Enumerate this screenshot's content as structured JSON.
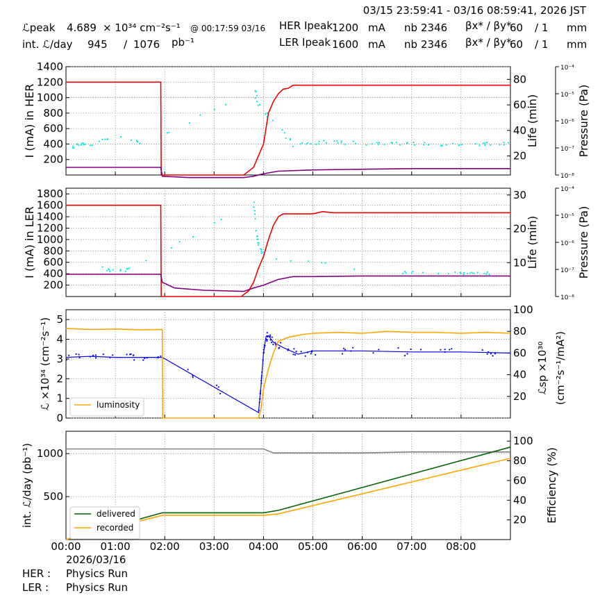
{
  "header": {
    "time_range": "03/15 23:59:41 - 03/16 08:59:41, 2026 JST",
    "lpeak_label": "ℒpeak",
    "lpeak_value": "4.689",
    "lpeak_unit": "× 10³⁴ cm⁻²s⁻¹",
    "lpeak_time": "@ 00:17:59 03/16",
    "intl_label": "int. ℒ/day",
    "intl_recorded": "945",
    "intl_sep": "/",
    "intl_delivered": "1076",
    "intl_unit": "pb⁻¹",
    "her_label": "HER Ipeak",
    "her_value": "1200",
    "her_unit": "mA",
    "her_nb_label": "nb",
    "her_nb": "2346",
    "her_beta_label": "βx* / βy*",
    "her_beta_x": "60",
    "her_beta_sep": "/ 1",
    "her_beta_unit": "mm",
    "ler_label": "LER Ipeak",
    "ler_value": "1600",
    "ler_unit": "mA",
    "ler_nb_label": "nb",
    "ler_nb": "2346",
    "ler_beta_label": "βx* / βy*",
    "ler_beta_x": "60",
    "ler_beta_sep": "/ 1",
    "ler_beta_unit": "mm"
  },
  "footer": {
    "date": "2026/03/16",
    "her_mode_label": "HER :",
    "her_mode": "Physics Run",
    "ler_mode_label": "LER :",
    "ler_mode": "Physics Run"
  },
  "colors": {
    "current": "#ee0000",
    "life": "#800080",
    "pressure": "#00e5e5",
    "luminosity": "#ffa500",
    "specific": "#0000ee",
    "delivered": "#006400",
    "recorded": "#ffa500",
    "efficiency": "#808080"
  },
  "chart_data": [
    {
      "type": "line",
      "panel": "HER",
      "x_ticks": [
        "00:00",
        "01:00",
        "02:00",
        "03:00",
        "04:00",
        "05:00",
        "06:00",
        "07:00",
        "08:00"
      ],
      "xlim_hours": [
        0,
        9
      ],
      "ylabel": "I (mA) in HER",
      "ylim": [
        0,
        1400
      ],
      "y_ticks": [
        200,
        400,
        600,
        800,
        1000,
        1200,
        1400
      ],
      "y2label": "Life (min)",
      "y2_ticks": [
        20,
        40,
        60,
        80
      ],
      "y3label": "Pressure (Pa)",
      "y3_ticks": [
        "10⁻⁸",
        "10⁻⁷",
        "10⁻⁶",
        "10⁻⁵",
        "10⁻⁴"
      ],
      "grid": true,
      "series": [
        {
          "role": "current",
          "x": [
            0,
            1.92,
            1.93,
            3.6,
            3.8,
            3.9,
            4.0,
            4.1,
            4.2,
            4.3,
            4.4,
            4.5,
            4.6,
            4.7,
            9
          ],
          "y": [
            1200,
            1200,
            0,
            0,
            100,
            250,
            400,
            800,
            950,
            1050,
            1110,
            1120,
            1160,
            1160,
            1160
          ]
        },
        {
          "role": "life",
          "x": [
            0,
            1.92,
            1.95,
            2.5,
            3.6,
            3.8,
            4.0,
            4.3,
            5.0,
            6.0,
            7.0,
            8.0,
            9
          ],
          "y": [
            90,
            90,
            20,
            10,
            10,
            20,
            40,
            60,
            70,
            75,
            80,
            80,
            80
          ]
        },
        {
          "role": "pressure_scatter",
          "x": [
            0.1,
            0.3,
            0.5,
            0.9,
            1.6,
            3.8,
            3.9,
            4.2,
            4.6,
            5.1,
            5.5,
            6.0,
            6.5,
            7.0,
            7.5,
            8.0,
            8.5,
            9
          ],
          "y": [
            350,
            400,
            380,
            500,
            400,
            1100,
            950,
            700,
            400,
            420,
            420,
            410,
            400,
            410,
            400,
            400,
            400,
            400
          ]
        }
      ]
    },
    {
      "type": "line",
      "panel": "LER",
      "ylabel": "I (mA) in LER",
      "ylim": [
        0,
        1900
      ],
      "y_ticks": [
        200,
        400,
        600,
        800,
        1000,
        1200,
        1400,
        1600,
        1800
      ],
      "y2label": "Life (min)",
      "y2_ticks": [
        10,
        20,
        30
      ],
      "y3label": "Pressure (Pa)",
      "y3_ticks": [
        "10⁻⁸",
        "10⁻⁷",
        "10⁻⁶",
        "10⁻⁵",
        "10⁻⁴"
      ],
      "grid": true,
      "series": [
        {
          "role": "current",
          "x": [
            0,
            1.92,
            1.93,
            3.55,
            3.7,
            3.8,
            3.9,
            4.0,
            4.1,
            4.2,
            4.3,
            4.4,
            4.6,
            5.0,
            5.2,
            5.4,
            6.0,
            9
          ],
          "y": [
            1600,
            1600,
            0,
            0,
            100,
            250,
            500,
            700,
            1000,
            1250,
            1400,
            1450,
            1450,
            1450,
            1490,
            1470,
            1470,
            1470
          ]
        },
        {
          "role": "life",
          "x": [
            0,
            1.92,
            1.95,
            2.2,
            2.8,
            3.6,
            3.8,
            4.0,
            4.3,
            4.6,
            5.0,
            6.0,
            7.0,
            8.0,
            9
          ],
          "y": [
            390,
            390,
            250,
            150,
            110,
            90,
            150,
            200,
            300,
            350,
            350,
            360,
            360,
            360,
            360
          ]
        },
        {
          "role": "pressure_scatter",
          "x": [
            0.7,
            1.0,
            1.3,
            3.8,
            3.85,
            3.9,
            4.0,
            6.5,
            7.5,
            8.0,
            8.3,
            8.6
          ],
          "y": [
            500,
            450,
            470,
            1650,
            1200,
            900,
            700,
            420,
            420,
            400,
            420,
            400
          ]
        }
      ]
    },
    {
      "type": "line",
      "panel": "Luminosity",
      "ylabel": "ℒ ×10³⁴ (cm⁻²s⁻¹)",
      "ylim": [
        0,
        5.5
      ],
      "y_ticks": [
        0,
        1,
        2,
        3,
        4,
        5
      ],
      "y2label": "ℒsp ×10³⁰",
      "y2label2": "(cm⁻²s⁻¹/mA²)",
      "y2lim": [
        0,
        100
      ],
      "y2_ticks": [
        20,
        40,
        60,
        80,
        100
      ],
      "legend": [
        "luminosity"
      ],
      "legend_loc": "lower-left",
      "grid": true,
      "series": [
        {
          "role": "luminosity",
          "name": "luminosity",
          "x": [
            0,
            0.5,
            1.0,
            1.5,
            1.95,
            1.96,
            3.9,
            3.95,
            4.0,
            4.1,
            4.2,
            4.3,
            4.5,
            4.8,
            5.0,
            5.5,
            6.0,
            6.5,
            7.0,
            7.5,
            8.0,
            8.5,
            9
          ],
          "y": [
            4.55,
            4.5,
            4.52,
            4.48,
            4.5,
            0,
            0,
            0.5,
            1.5,
            2.5,
            3.3,
            3.9,
            4.1,
            4.25,
            4.3,
            4.35,
            4.3,
            4.4,
            4.35,
            4.35,
            4.3,
            4.35,
            4.3
          ]
        },
        {
          "role": "specific_luminosity",
          "x": [
            0,
            0.5,
            1.0,
            1.5,
            1.95,
            3.9,
            3.95,
            4.0,
            4.05,
            4.1,
            4.2,
            4.4,
            4.7,
            5.0,
            6.0,
            7.0,
            8.0,
            9
          ],
          "y": [
            56,
            57,
            56,
            56,
            56,
            5,
            30,
            60,
            75,
            76,
            70,
            65,
            59,
            62,
            62,
            61,
            61,
            60
          ]
        }
      ]
    },
    {
      "type": "line",
      "panel": "Integrated",
      "ylabel": "int. ℒ/day (pb⁻¹)",
      "ylim": [
        0,
        1260
      ],
      "y_ticks": [
        500,
        1000
      ],
      "y2label": "Efficiency (%)",
      "y2lim": [
        0,
        110
      ],
      "y2_ticks": [
        20,
        40,
        60,
        80,
        100
      ],
      "legend": [
        "delivered",
        "recorded"
      ],
      "legend_loc": "lower-left",
      "grid": true,
      "series": [
        {
          "role": "delivered",
          "name": "delivered",
          "x": [
            0,
            1.95,
            4.0,
            4.3,
            9
          ],
          "y": [
            0,
            312,
            312,
            340,
            1076
          ]
        },
        {
          "role": "recorded",
          "name": "recorded",
          "x": [
            0,
            1.95,
            4.0,
            4.3,
            9
          ],
          "y": [
            0,
            282,
            282,
            300,
            945
          ]
        },
        {
          "role": "efficiency",
          "x": [
            0,
            4.0,
            4.2,
            4.5,
            5.0,
            6.0,
            7.0,
            8.0,
            9
          ],
          "y": [
            92,
            92,
            88,
            88,
            88,
            88,
            89,
            89,
            89
          ]
        }
      ]
    }
  ]
}
